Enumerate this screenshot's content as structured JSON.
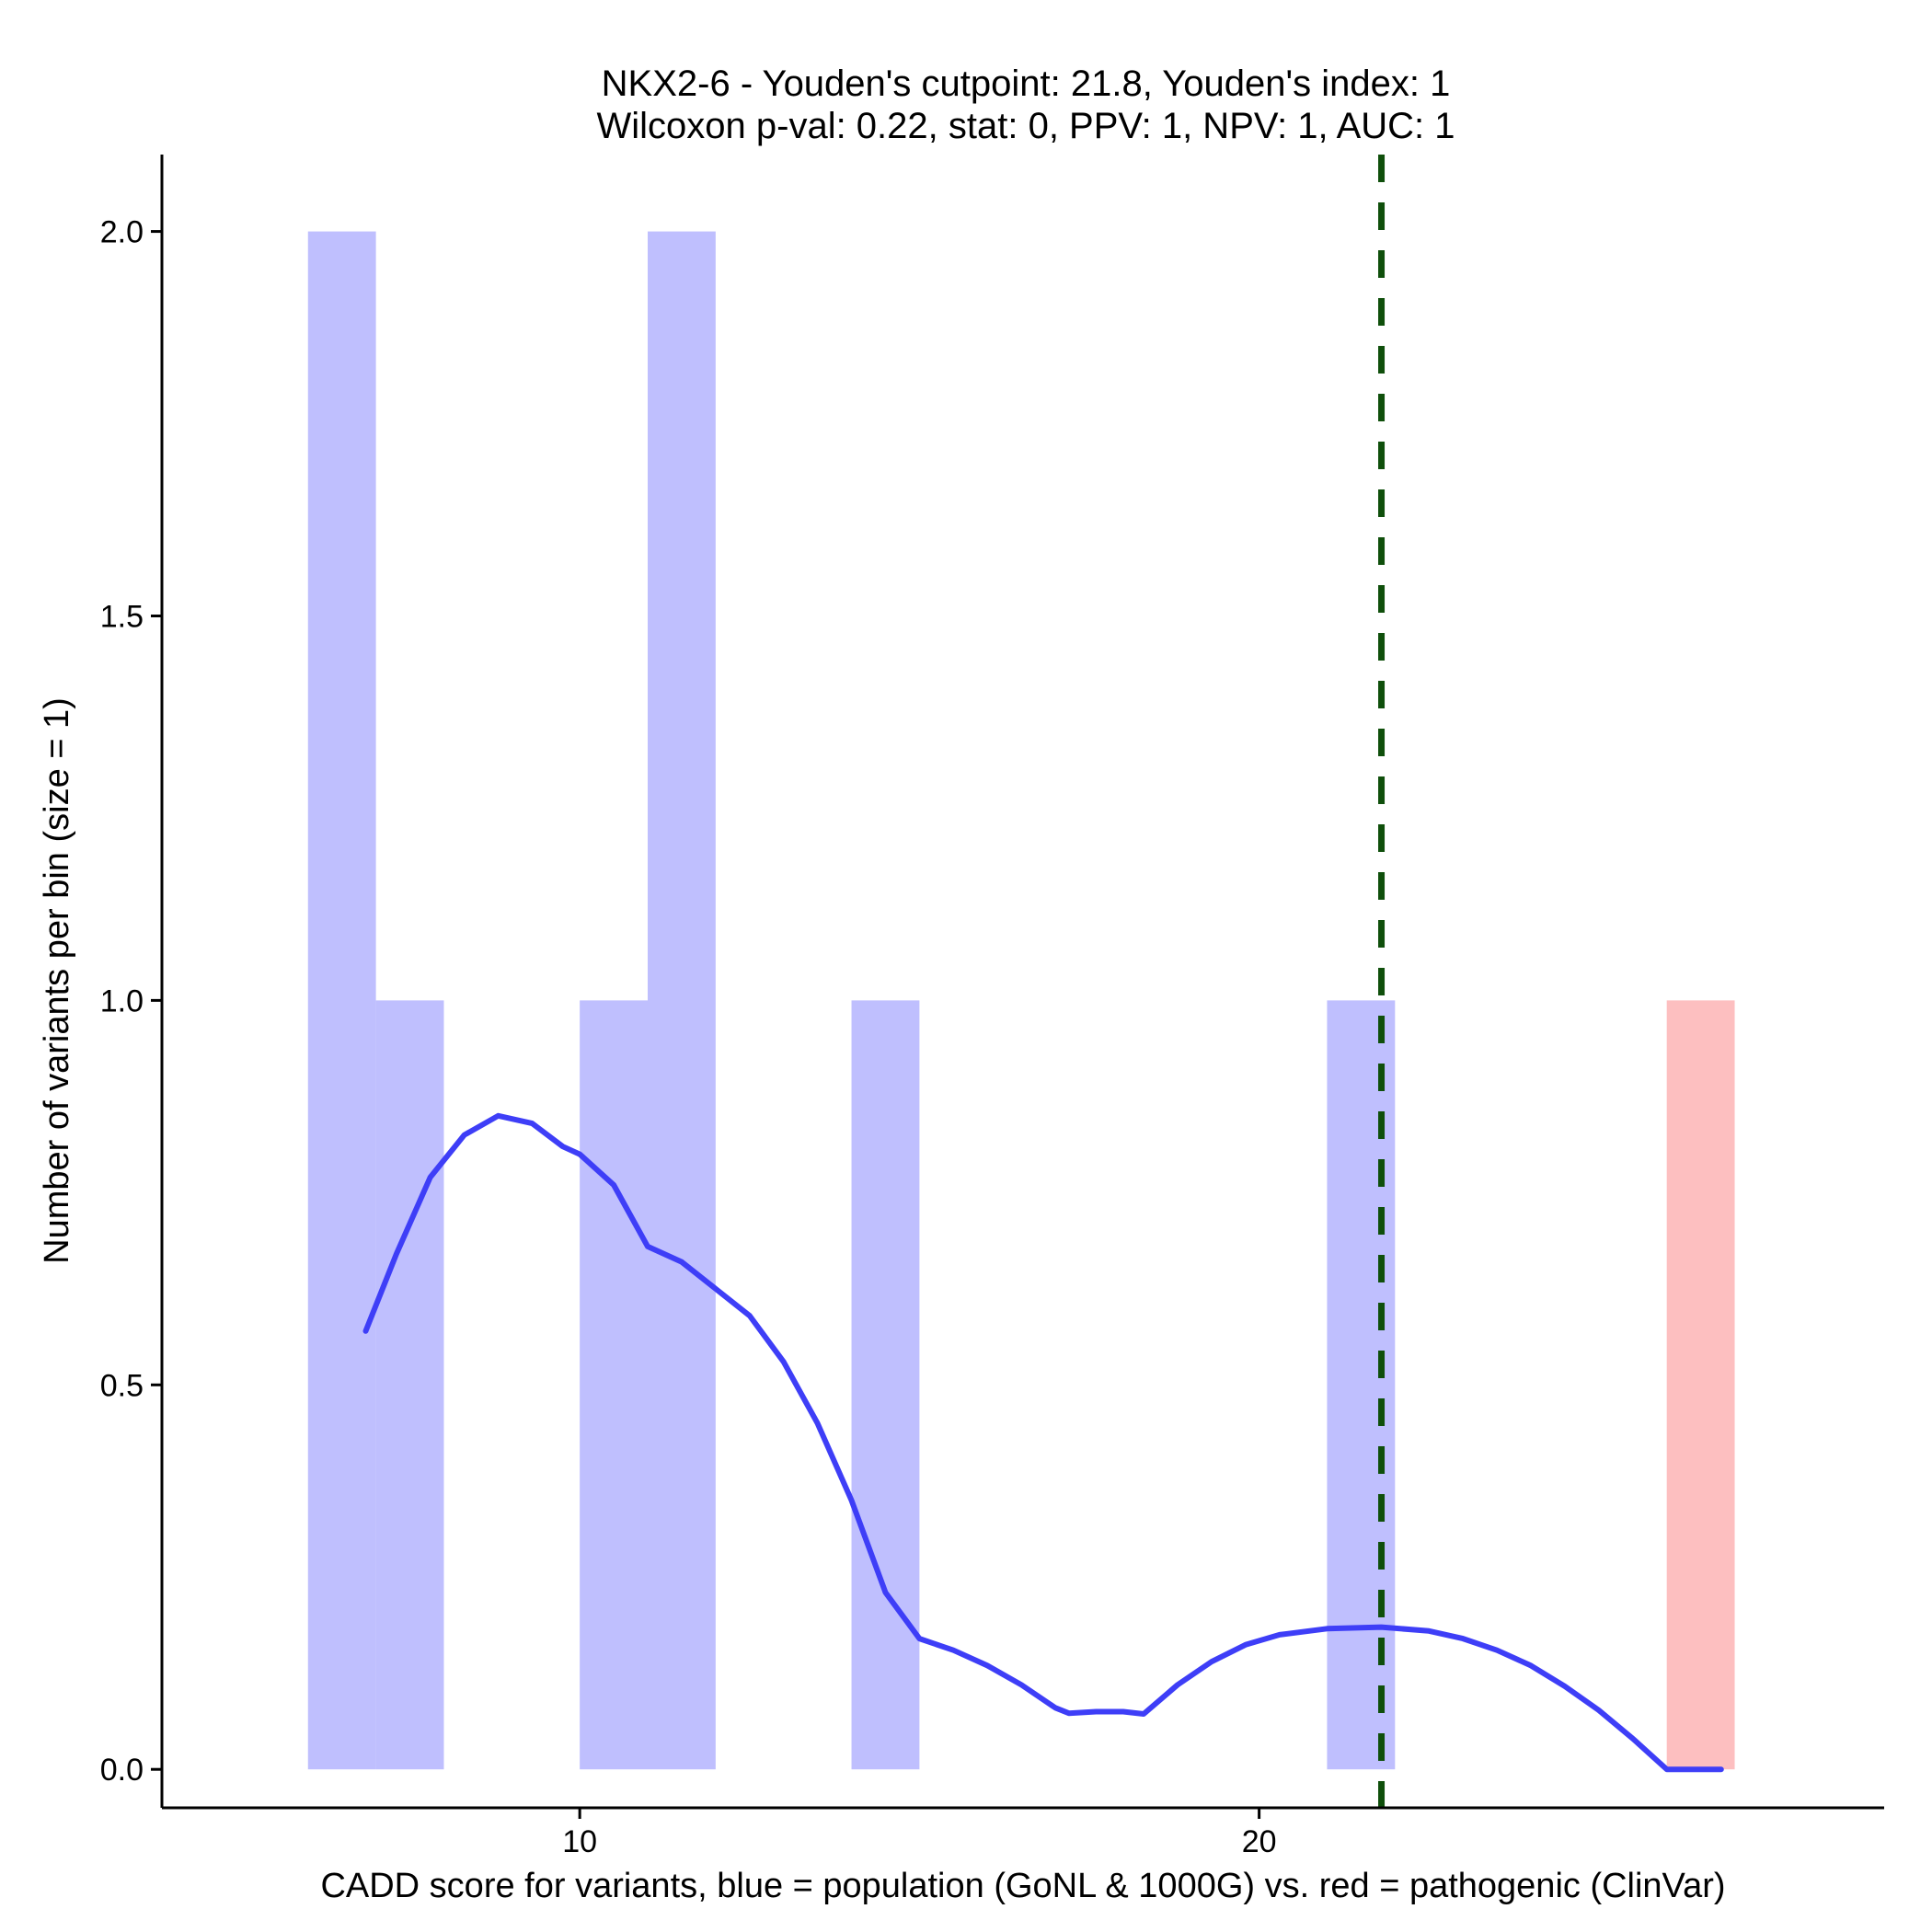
{
  "chart_data": {
    "type": "histogram",
    "title_line1": "NKX2-6 - Youden's cutpoint: 21.8, Youden's index: 1",
    "title_line2": "Wilcoxon p-val: 0.22, stat: 0, PPV: 1, NPV: 1, AUC: 1",
    "xlabel": "CADD score for variants, blue = population (GoNL & 1000G) vs. red = pathogenic (ClinVar)",
    "ylabel": "Number of variants per bin (size = 1)",
    "xlim": [
      3.85,
      29.2
    ],
    "ylim": [
      -0.05,
      2.1
    ],
    "x_ticks": [
      {
        "value": 10,
        "label": "10"
      },
      {
        "value": 20,
        "label": "20"
      }
    ],
    "y_ticks": [
      {
        "value": 0.0,
        "label": "0.0"
      },
      {
        "value": 0.5,
        "label": "0.5"
      },
      {
        "value": 1.0,
        "label": "1.0"
      },
      {
        "value": 1.5,
        "label": "1.5"
      },
      {
        "value": 2.0,
        "label": "2.0"
      }
    ],
    "series": [
      {
        "name": "population (GoNL & 1000G)",
        "color": "#bfbffe",
        "bins": [
          {
            "x0": 6,
            "x1": 7,
            "count": 2
          },
          {
            "x0": 7,
            "x1": 8,
            "count": 1
          },
          {
            "x0": 10,
            "x1": 11,
            "count": 1
          },
          {
            "x0": 11,
            "x1": 12,
            "count": 2
          },
          {
            "x0": 14,
            "x1": 15,
            "count": 1
          },
          {
            "x0": 21,
            "x1": 22,
            "count": 1
          }
        ]
      },
      {
        "name": "pathogenic (ClinVar)",
        "color": "#fdbfc0",
        "bins": [
          {
            "x0": 26,
            "x1": 27,
            "count": 1
          }
        ]
      }
    ],
    "density_line": {
      "color": "#3e3ef7",
      "points": [
        [
          6.85,
          0.57
        ],
        [
          7.3,
          0.67
        ],
        [
          7.8,
          0.77
        ],
        [
          8.3,
          0.825
        ],
        [
          8.8,
          0.85
        ],
        [
          9.3,
          0.84
        ],
        [
          9.75,
          0.81
        ],
        [
          10.0,
          0.8
        ],
        [
          10.5,
          0.76
        ],
        [
          11.0,
          0.68
        ],
        [
          11.5,
          0.66
        ],
        [
          12.0,
          0.625
        ],
        [
          12.5,
          0.59
        ],
        [
          13.0,
          0.53
        ],
        [
          13.5,
          0.45
        ],
        [
          14.0,
          0.35
        ],
        [
          14.5,
          0.23
        ],
        [
          15.0,
          0.17
        ],
        [
          15.5,
          0.155
        ],
        [
          16.0,
          0.135
        ],
        [
          16.5,
          0.11
        ],
        [
          17.0,
          0.08
        ],
        [
          17.2,
          0.073
        ],
        [
          17.6,
          0.075
        ],
        [
          18.0,
          0.075
        ],
        [
          18.3,
          0.072
        ],
        [
          18.8,
          0.11
        ],
        [
          19.3,
          0.14
        ],
        [
          19.8,
          0.162
        ],
        [
          20.3,
          0.175
        ],
        [
          21.0,
          0.183
        ],
        [
          21.8,
          0.185
        ],
        [
          22.5,
          0.18
        ],
        [
          23.0,
          0.17
        ],
        [
          23.5,
          0.155
        ],
        [
          24.0,
          0.135
        ],
        [
          24.5,
          0.108
        ],
        [
          25.0,
          0.077
        ],
        [
          25.5,
          0.04
        ],
        [
          26.0,
          0.0
        ],
        [
          26.8,
          0.0
        ]
      ]
    },
    "cutpoint": {
      "value": 21.8,
      "color": "#0f4f0b",
      "label": "Youden's cutpoint"
    }
  }
}
